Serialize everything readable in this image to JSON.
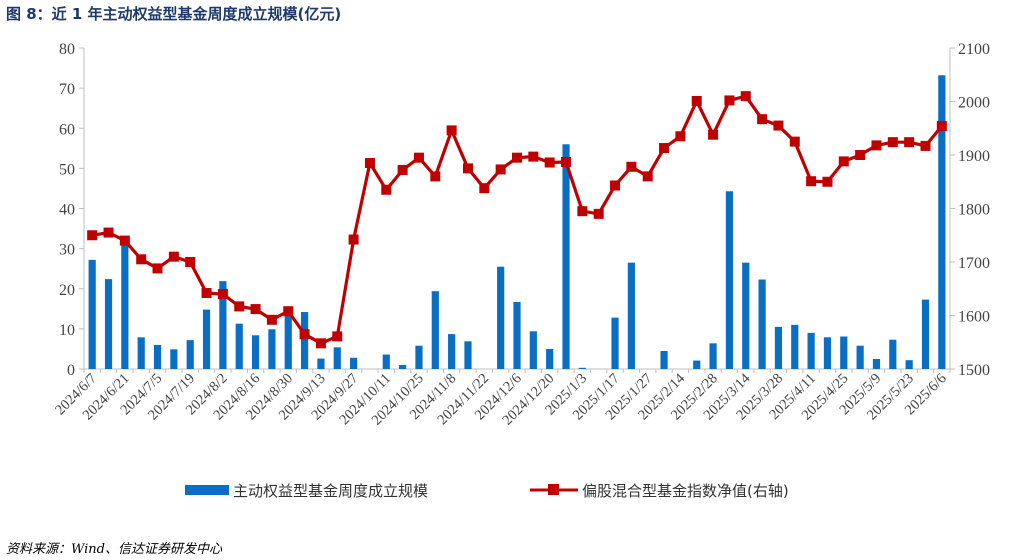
{
  "header": {
    "title": "图 8：近 1 年主动权益型基金周度成立规模(亿元)"
  },
  "footer": {
    "source": "资料来源：Wind、信达证券研发中心"
  },
  "colors": {
    "bar": "#0a6fc2",
    "line": "#c00000",
    "axis": "#bfbfbf",
    "title": "#1f3a6a"
  },
  "chart_data": {
    "type": "bar+line",
    "title": "图 8：近 1 年主动权益型基金周度成立规模(亿元)",
    "grid": false,
    "legend_position": "bottom",
    "x": [
      "2024/6/7",
      "2024/6/14",
      "2024/6/21",
      "2024/6/28",
      "2024/7/5",
      "2024/7/12",
      "2024/7/19",
      "2024/7/26",
      "2024/8/2",
      "2024/8/9",
      "2024/8/16",
      "2024/8/23",
      "2024/8/30",
      "2024/9/6",
      "2024/9/13",
      "2024/9/20",
      "2024/9/27",
      "2024/10/4",
      "2024/10/11",
      "2024/10/18",
      "2024/10/25",
      "2024/11/1",
      "2024/11/8",
      "2024/11/15",
      "2024/11/22",
      "2024/11/29",
      "2024/12/6",
      "2024/12/13",
      "2024/12/20",
      "2024/12/27",
      "2025/1/3",
      "2025/1/10",
      "2025/1/17",
      "2025/1/24",
      "2025/1/27",
      "2025/2/7",
      "2025/2/14",
      "2025/2/21",
      "2025/2/28",
      "2025/3/7",
      "2025/3/14",
      "2025/3/21",
      "2025/3/28",
      "2025/4/3",
      "2025/4/11",
      "2025/4/18",
      "2025/4/25",
      "2025/4/30",
      "2025/5/9",
      "2025/5/16",
      "2025/5/23",
      "2025/5/30",
      "2025/6/6"
    ],
    "x_tick_labels": [
      "2024/6/7",
      "2024/6/21",
      "2024/7/5",
      "2024/7/19",
      "2024/8/2",
      "2024/8/16",
      "2024/8/30",
      "2024/9/13",
      "2024/9/27",
      "2024/10/11",
      "2024/10/25",
      "2024/11/8",
      "2024/11/22",
      "2024/12/6",
      "2024/12/20",
      "2025/1/3",
      "2025/1/17",
      "2025/1/27",
      "2025/2/14",
      "2025/2/28",
      "2025/3/14",
      "2025/3/28",
      "2025/4/11",
      "2025/4/25",
      "2025/5/9",
      "2025/5/23",
      "2025/6/6"
    ],
    "y_left_ticks": [
      "0",
      "10",
      "20",
      "30",
      "40",
      "50",
      "60",
      "70",
      "80"
    ],
    "y_right_ticks": [
      "1500",
      "1600",
      "1700",
      "1800",
      "1900",
      "2000",
      "2100"
    ],
    "ylim_left": [
      0,
      80
    ],
    "ylim_right": [
      1500,
      2100
    ],
    "series": [
      {
        "name": "主动权益型基金周度成立规模",
        "type": "bar",
        "axis": "left",
        "values": [
          27.2,
          22.4,
          30.8,
          7.9,
          6.0,
          4.9,
          7.2,
          14.8,
          21.9,
          11.3,
          8.4,
          9.9,
          14.1,
          14.2,
          2.6,
          5.4,
          2.8,
          0,
          3.6,
          1.0,
          5.8,
          19.4,
          8.7,
          6.9,
          0,
          25.5,
          16.7,
          9.4,
          5.0,
          56.0,
          0.3,
          0,
          12.8,
          26.5,
          0,
          4.5,
          0,
          2.1,
          6.4,
          44.3,
          26.5,
          22.3,
          10.5,
          11.0,
          9.0,
          7.9,
          8.1,
          5.8,
          2.5,
          7.3,
          2.2,
          17.3,
          73.2
        ]
      },
      {
        "name": "偏股混合型基金指数净值(右轴)",
        "type": "line",
        "axis": "right",
        "values": [
          1750,
          1755,
          1740,
          1705,
          1688,
          1710,
          1700,
          1642,
          1640,
          1617,
          1612,
          1592,
          1608,
          1565,
          1548,
          1561,
          1742,
          1885,
          1835,
          1872,
          1895,
          1860,
          1946,
          1875,
          1838,
          1873,
          1895,
          1897,
          1886,
          1887,
          1795,
          1790,
          1843,
          1878,
          1860,
          1913,
          1935,
          2001,
          1938,
          2002,
          2010,
          1967,
          1955,
          1925,
          1851,
          1850,
          1888,
          1900,
          1918,
          1924,
          1924,
          1917,
          1954
        ]
      }
    ]
  },
  "legend": {
    "bar_label": "主动权益型基金周度成立规模",
    "line_label": "偏股混合型基金指数净值(右轴)"
  }
}
